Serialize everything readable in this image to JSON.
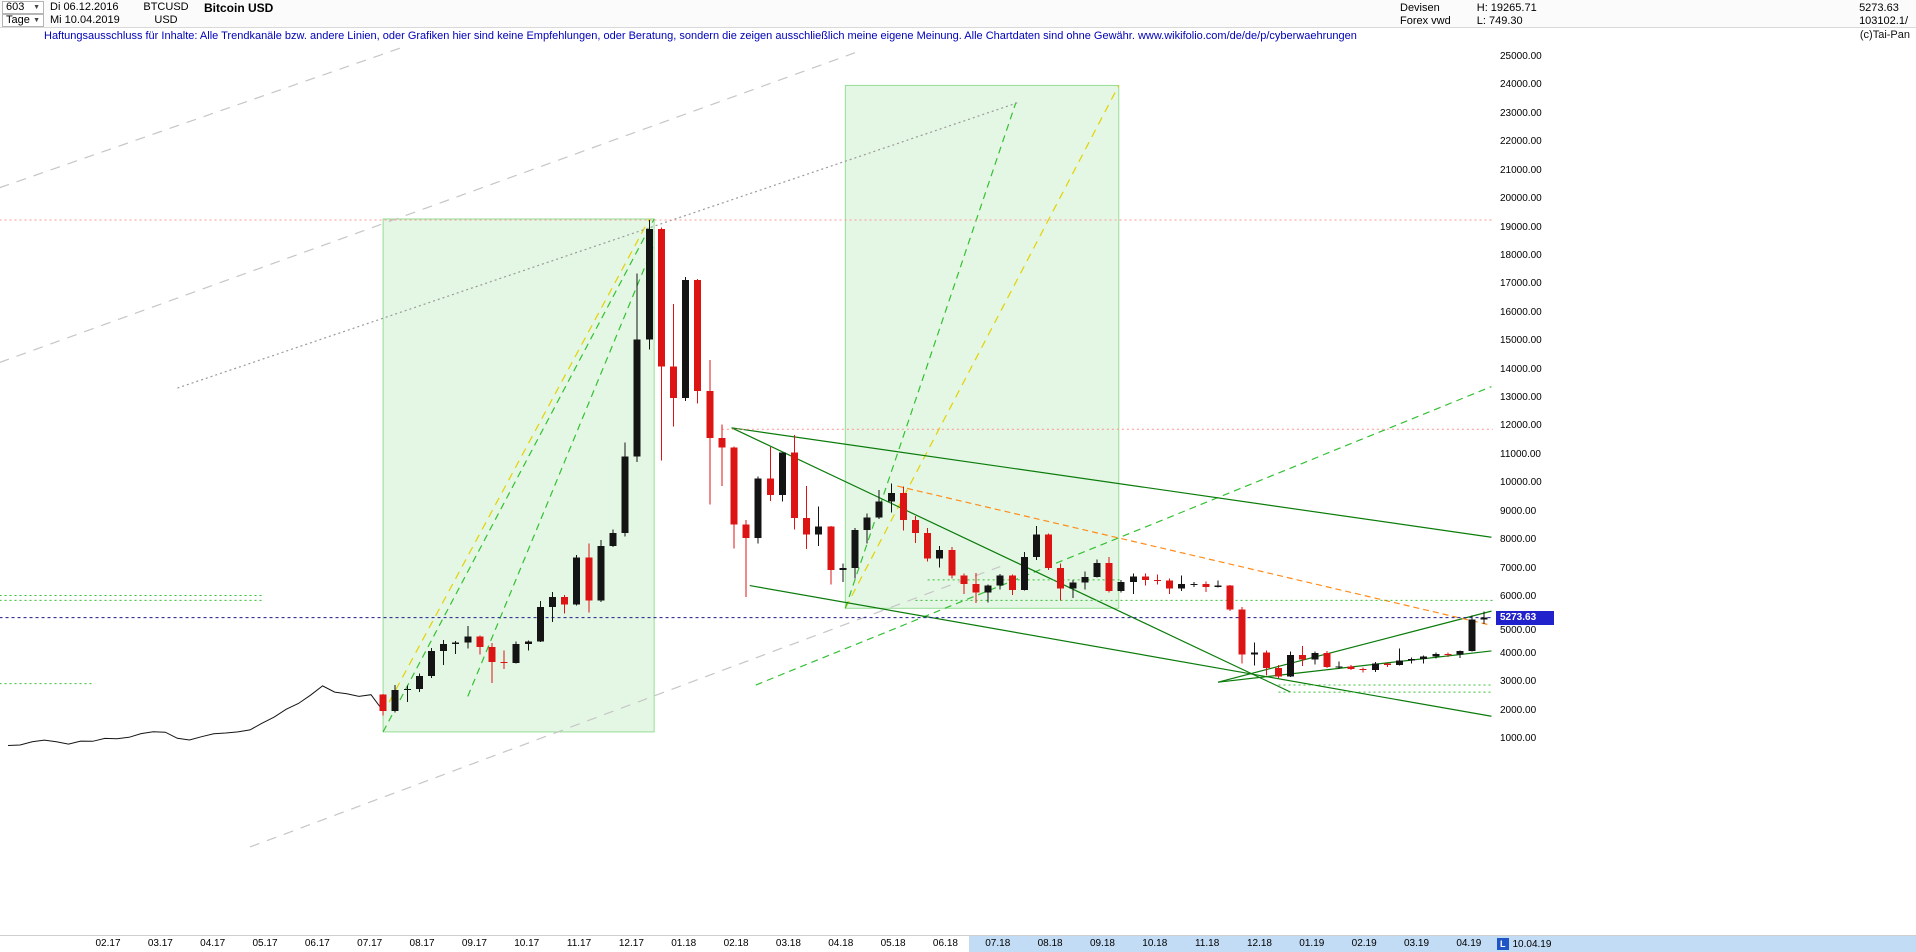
{
  "header": {
    "bar_number": "603",
    "dropdown_arrow": "▼",
    "period_label": "Tage",
    "date_from": "Di 06.12.2016",
    "date_to": "Mi 10.04.2019",
    "symbol": "BTCUSD",
    "currency": "USD",
    "title": "Bitcoin USD",
    "right": {
      "market": "Devisen",
      "source": "Forex vwd",
      "high": "H: 19265.71",
      "low": "L: 749.30",
      "last": "5273.63",
      "volume": "103102.1/"
    }
  },
  "disclaimer": "Haftungsausschluss für Inhalte: Alle Trendkanäle bzw. andere Linien, oder Grafiken hier sind keine Empfehlungen, oder Beratung, sondern die zeigen ausschließlich meine eigene Meinung. Alle Chartdaten sind ohne Gewähr.  www.wikifolio.com/de/de/p/cyberwaehrungen",
  "watermark": "(c)Tai-Pan",
  "price_marker": {
    "value": "5273.63",
    "price": 5273.63
  },
  "y_axis": {
    "max": 25000,
    "min": 1000,
    "step": 1000,
    "labels": [
      "25000.00",
      "24000.00",
      "23000.00",
      "22000.00",
      "21000.00",
      "20000.00",
      "19000.00",
      "18000.00",
      "17000.00",
      "16000.00",
      "15000.00",
      "14000.00",
      "13000.00",
      "12000.00",
      "11000.00",
      "10000.00",
      "9000.00",
      "8000.00",
      "7000.00",
      "6000.00",
      "5000.00",
      "4000.00",
      "3000.00",
      "2000.00",
      "1000.00"
    ]
  },
  "x_axis": {
    "labels": [
      "02.17",
      "03.17",
      "04.17",
      "05.17",
      "06.17",
      "07.17",
      "08.17",
      "09.17",
      "10.17",
      "11.17",
      "12.17",
      "01.18",
      "02.18",
      "03.18",
      "04.18",
      "05.18",
      "06.18",
      "07.18",
      "08.18",
      "09.18",
      "10.18",
      "11.18",
      "12.18",
      "01.19",
      "02.19",
      "03.19",
      "04.19"
    ],
    "highlight_from_index": 17,
    "end_label_l": "L",
    "end_label_date": "10.04.19"
  },
  "chart_data": {
    "type": "candlestick",
    "symbol": "BTCUSD",
    "title": "Bitcoin USD",
    "period_shown": "06.12.2016 - 10.04.2019",
    "interval": "weekly OHLC approximation of the daily chart",
    "start_date": "2016-12-05",
    "all_time_high": 19265.71,
    "all_time_low": 749.3,
    "last_close": 5273.63,
    "ylim": [
      1000,
      25000
    ],
    "y_tick_step": 1000,
    "x_ticks": [
      "02.17",
      "03.17",
      "04.17",
      "05.17",
      "06.17",
      "07.17",
      "08.17",
      "09.17",
      "10.17",
      "11.17",
      "12.17",
      "01.18",
      "02.18",
      "03.18",
      "04.18",
      "05.18",
      "06.18",
      "07.18",
      "08.18",
      "09.18",
      "10.18",
      "11.18",
      "12.18",
      "01.19",
      "02.19",
      "03.19",
      "04.19"
    ],
    "line_until_index": 31,
    "candles": [
      [
        768,
        775,
        755,
        772
      ],
      [
        772,
        795,
        765,
        790
      ],
      [
        790,
        905,
        785,
        900
      ],
      [
        900,
        985,
        890,
        963
      ],
      [
        963,
        1150,
        885,
        900
      ],
      [
        900,
        935,
        750,
        820
      ],
      [
        820,
        930,
        815,
        925
      ],
      [
        925,
        935,
        885,
        920
      ],
      [
        920,
        1025,
        910,
        1020
      ],
      [
        1020,
        1070,
        940,
        1010
      ],
      [
        1010,
        1065,
        995,
        1060
      ],
      [
        1060,
        1200,
        1050,
        1190
      ],
      [
        1190,
        1295,
        1130,
        1255
      ],
      [
        1255,
        1290,
        1060,
        1240
      ],
      [
        1240,
        1260,
        970,
        1025
      ],
      [
        1025,
        1070,
        890,
        965
      ],
      [
        965,
        1095,
        940,
        1080
      ],
      [
        1080,
        1215,
        1065,
        1185
      ],
      [
        1185,
        1230,
        1135,
        1210
      ],
      [
        1210,
        1260,
        1180,
        1250
      ],
      [
        1250,
        1345,
        1230,
        1320
      ],
      [
        1320,
        1580,
        1310,
        1555
      ],
      [
        1555,
        1845,
        1535,
        1770
      ],
      [
        1770,
        2060,
        1680,
        2050
      ],
      [
        2050,
        2760,
        1950,
        2250
      ],
      [
        2250,
        2550,
        2110,
        2540
      ],
      [
        2540,
        2980,
        2480,
        2870
      ],
      [
        2870,
        3000,
        2450,
        2650
      ],
      [
        2650,
        2800,
        2520,
        2590
      ],
      [
        2590,
        2620,
        2290,
        2500
      ],
      [
        2500,
        2640,
        2385,
        2560
      ],
      [
        2560,
        2580,
        1835,
        1990
      ],
      [
        1990,
        2900,
        1940,
        2730
      ],
      [
        2730,
        2890,
        2300,
        2760
      ],
      [
        2760,
        3300,
        2650,
        3210
      ],
      [
        3210,
        4200,
        3150,
        4100
      ],
      [
        4100,
        4480,
        3600,
        4350
      ],
      [
        4350,
        4450,
        3990,
        4390
      ],
      [
        4390,
        4980,
        4190,
        4600
      ],
      [
        4600,
        4650,
        3980,
        4230
      ],
      [
        4230,
        4380,
        2975,
        3715
      ],
      [
        3715,
        4120,
        3470,
        3670
      ],
      [
        3670,
        4425,
        3660,
        4350
      ],
      [
        4350,
        4470,
        4115,
        4430
      ],
      [
        4430,
        5860,
        4420,
        5640
      ],
      [
        5640,
        6180,
        5110,
        5990
      ],
      [
        5990,
        6070,
        5415,
        5730
      ],
      [
        5730,
        7480,
        5690,
        7380
      ],
      [
        7380,
        7880,
        5450,
        5880
      ],
      [
        5880,
        8000,
        5820,
        7790
      ],
      [
        7790,
        8380,
        7750,
        8250
      ],
      [
        8250,
        11440,
        8120,
        10950
      ],
      [
        10950,
        17380,
        10740,
        15050
      ],
      [
        15050,
        19265,
        14700,
        18950
      ],
      [
        18950,
        19000,
        10800,
        14100
      ],
      [
        14100,
        16300,
        12000,
        13000
      ],
      [
        13000,
        17250,
        12900,
        17150
      ],
      [
        17150,
        17180,
        12800,
        13250
      ],
      [
        13250,
        14340,
        9250,
        11600
      ],
      [
        11600,
        12070,
        9900,
        11250
      ],
      [
        11250,
        11290,
        7700,
        8550
      ],
      [
        8550,
        8700,
        5990,
        8070
      ],
      [
        8070,
        10230,
        7880,
        10160
      ],
      [
        10160,
        11280,
        9380,
        9590
      ],
      [
        9590,
        11090,
        9350,
        11080
      ],
      [
        11080,
        11690,
        8370,
        8770
      ],
      [
        8770,
        9900,
        7680,
        8200
      ],
      [
        8200,
        9190,
        7790,
        8480
      ],
      [
        8480,
        8490,
        6430,
        6940
      ],
      [
        6940,
        7180,
        6530,
        7020
      ],
      [
        7020,
        8420,
        6650,
        8350
      ],
      [
        8350,
        8930,
        7880,
        8800
      ],
      [
        8800,
        9770,
        8750,
        9350
      ],
      [
        9350,
        9990,
        8970,
        9650
      ],
      [
        9650,
        9890,
        8330,
        8700
      ],
      [
        8700,
        8850,
        7890,
        8250
      ],
      [
        8250,
        8420,
        7250,
        7350
      ],
      [
        7350,
        7790,
        7030,
        7650
      ],
      [
        7650,
        7760,
        6640,
        6750
      ],
      [
        6750,
        6830,
        6110,
        6450
      ],
      [
        6450,
        6850,
        5780,
        6150
      ],
      [
        6150,
        6440,
        5800,
        6400
      ],
      [
        6400,
        6815,
        6260,
        6750
      ],
      [
        6750,
        6790,
        6070,
        6250
      ],
      [
        6250,
        7580,
        6230,
        7400
      ],
      [
        7400,
        8500,
        7300,
        8200
      ],
      [
        8200,
        8230,
        6950,
        7020
      ],
      [
        7020,
        7170,
        5880,
        6300
      ],
      [
        6300,
        6600,
        5970,
        6500
      ],
      [
        6500,
        6900,
        6270,
        6700
      ],
      [
        6700,
        7320,
        6680,
        7200
      ],
      [
        7200,
        7410,
        6150,
        6200
      ],
      [
        6200,
        6590,
        6150,
        6520
      ],
      [
        6520,
        6820,
        6100,
        6710
      ],
      [
        6710,
        6830,
        6410,
        6600
      ],
      [
        6600,
        6790,
        6430,
        6580
      ],
      [
        6580,
        6650,
        6100,
        6300
      ],
      [
        6300,
        6760,
        6200,
        6450
      ],
      [
        6450,
        6530,
        6350,
        6450
      ],
      [
        6450,
        6550,
        6175,
        6350
      ],
      [
        6350,
        6570,
        6330,
        6400
      ],
      [
        6400,
        6420,
        5510,
        5550
      ],
      [
        5550,
        5650,
        3650,
        3980
      ],
      [
        3980,
        4390,
        3580,
        4050
      ],
      [
        4050,
        4120,
        3240,
        3500
      ],
      [
        3500,
        3600,
        3150,
        3200
      ],
      [
        3200,
        4080,
        3180,
        3950
      ],
      [
        3950,
        4270,
        3570,
        3800
      ],
      [
        3800,
        4080,
        3630,
        4020
      ],
      [
        4020,
        4090,
        3500,
        3530
      ],
      [
        3530,
        3730,
        3460,
        3560
      ],
      [
        3560,
        3610,
        3430,
        3460
      ],
      [
        3460,
        3520,
        3340,
        3420
      ],
      [
        3420,
        3710,
        3350,
        3660
      ],
      [
        3660,
        3680,
        3530,
        3600
      ],
      [
        3600,
        4190,
        3590,
        3760
      ],
      [
        3760,
        3860,
        3660,
        3810
      ],
      [
        3810,
        3940,
        3650,
        3910
      ],
      [
        3910,
        4040,
        3830,
        3990
      ],
      [
        3990,
        4050,
        3890,
        3980
      ],
      [
        3980,
        4110,
        3850,
        4100
      ],
      [
        4100,
        5345,
        4080,
        5200
      ],
      [
        5200,
        5480,
        5050,
        5273.63
      ]
    ],
    "overlays": [
      {
        "kind": "box",
        "name": "bull-run-channel-2017",
        "t1": 31,
        "t2": 53.4,
        "p1": 1250,
        "p2": 19300
      },
      {
        "kind": "box",
        "name": "projection-channel-2018",
        "t1": 69.2,
        "t2": 91.8,
        "p1": 5600,
        "p2": 24000
      },
      {
        "kind": "line",
        "color": "yellow",
        "dash": "8,6",
        "pts": [
          [
            31.5,
            2300
          ],
          [
            53,
            19300
          ]
        ]
      },
      {
        "kind": "line",
        "color": "yellow",
        "dash": "8,6",
        "pts": [
          [
            69.2,
            5600
          ],
          [
            91.8,
            24000
          ]
        ]
      },
      {
        "kind": "line",
        "color": "green",
        "dash": "7,5",
        "pts": [
          [
            31,
            1250
          ],
          [
            53.4,
            19300
          ]
        ]
      },
      {
        "kind": "line",
        "color": "green",
        "dash": "7,5",
        "pts": [
          [
            38,
            2500
          ],
          [
            53.3,
            18300
          ]
        ]
      },
      {
        "kind": "line",
        "color": "green",
        "dash": "7,5",
        "pts": [
          [
            69.2,
            5600
          ],
          [
            83.3,
            23400
          ]
        ]
      },
      {
        "kind": "line",
        "color": "green",
        "dash": "7,5",
        "pts": [
          [
            61.8,
            2900
          ],
          [
            122.6,
            13400
          ]
        ]
      },
      {
        "kind": "line",
        "color": "darkgreen",
        "pts": [
          [
            59.8,
            11950
          ],
          [
            122.6,
            8100
          ]
        ]
      },
      {
        "kind": "line",
        "color": "darkgreen",
        "pts": [
          [
            59.8,
            11950
          ],
          [
            106,
            2650
          ]
        ]
      },
      {
        "kind": "line",
        "color": "darkgreen",
        "pts": [
          [
            61.3,
            6400
          ],
          [
            122.6,
            1800
          ]
        ]
      },
      {
        "kind": "line",
        "color": "darkgreen",
        "pts": [
          [
            100,
            3000
          ],
          [
            122.6,
            5500
          ]
        ]
      },
      {
        "kind": "line",
        "color": "darkgreen",
        "pts": [
          [
            100,
            3000
          ],
          [
            122.6,
            4100
          ]
        ]
      },
      {
        "kind": "line",
        "color": "orange",
        "dash": "6,4",
        "pts": [
          [
            73.5,
            9900
          ],
          [
            122.6,
            5000
          ]
        ]
      },
      {
        "kind": "line",
        "color": "gray",
        "dash": "10,8",
        "pts": [
          [
            -0.7,
            14250
          ],
          [
            70,
            25150
          ]
        ]
      },
      {
        "kind": "line",
        "color": "gray",
        "dash": "10,8",
        "pts": [
          [
            -0.7,
            20400
          ],
          [
            33,
            25400
          ]
        ]
      },
      {
        "kind": "line",
        "color": "gray",
        "dash": "10,8",
        "pts": [
          [
            20,
            -2800
          ],
          [
            82,
            7070
          ]
        ]
      },
      {
        "kind": "line",
        "color": "graydot",
        "dash": "2,3",
        "pts": [
          [
            14,
            13350
          ],
          [
            83.5,
            23400
          ]
        ]
      },
      {
        "kind": "hline",
        "color": "reddot",
        "dash": "2,3",
        "p": 19265,
        "t0": -0.7,
        "t1": 122.7
      },
      {
        "kind": "hline",
        "color": "reddot",
        "dash": "2,3",
        "p": 11900,
        "t0": 59,
        "t1": 122.7
      },
      {
        "kind": "hline",
        "color": "navy",
        "dash": "3,3",
        "p": 5273.63,
        "t0": -0.7,
        "t1": 122.7
      },
      {
        "kind": "hline",
        "color": "greenh",
        "dash": "2,3",
        "p": 6050,
        "t0": -0.7,
        "t1": 21
      },
      {
        "kind": "hline",
        "color": "greenh",
        "dash": "2,3",
        "p": 5880,
        "t0": -0.7,
        "t1": 21
      },
      {
        "kind": "hline",
        "color": "greenh",
        "dash": "2,3",
        "p": 2950,
        "t0": -0.7,
        "t1": 7
      },
      {
        "kind": "hline",
        "color": "greenh",
        "dash": "2,3",
        "p": 6600,
        "t0": 76,
        "t1": 92
      },
      {
        "kind": "hline",
        "color": "greenh",
        "dash": "2,3",
        "p": 5880,
        "t0": 75,
        "t1": 122.7
      },
      {
        "kind": "hline",
        "color": "greenh",
        "dash": "2,3",
        "p": 2900,
        "t0": 105,
        "t1": 122.7
      },
      {
        "kind": "hline",
        "color": "greenh",
        "dash": "2,3",
        "p": 2650,
        "t0": 105,
        "t1": 122.7
      }
    ],
    "colors": {
      "up": "#141414",
      "down": "#dd1414",
      "line": "#141414",
      "box_fill": "#e4f7e4",
      "box_border": "#96dd96",
      "yellow": "#e3d200",
      "green": "#34c034",
      "darkgreen": "#0b7c0b",
      "orange": "#ff8c1a",
      "gray": "#c6c6c6",
      "graydot": "#9a9a9a",
      "reddot": "#ff9494",
      "navy": "#1a1a8c",
      "greenh": "#34c034"
    }
  }
}
